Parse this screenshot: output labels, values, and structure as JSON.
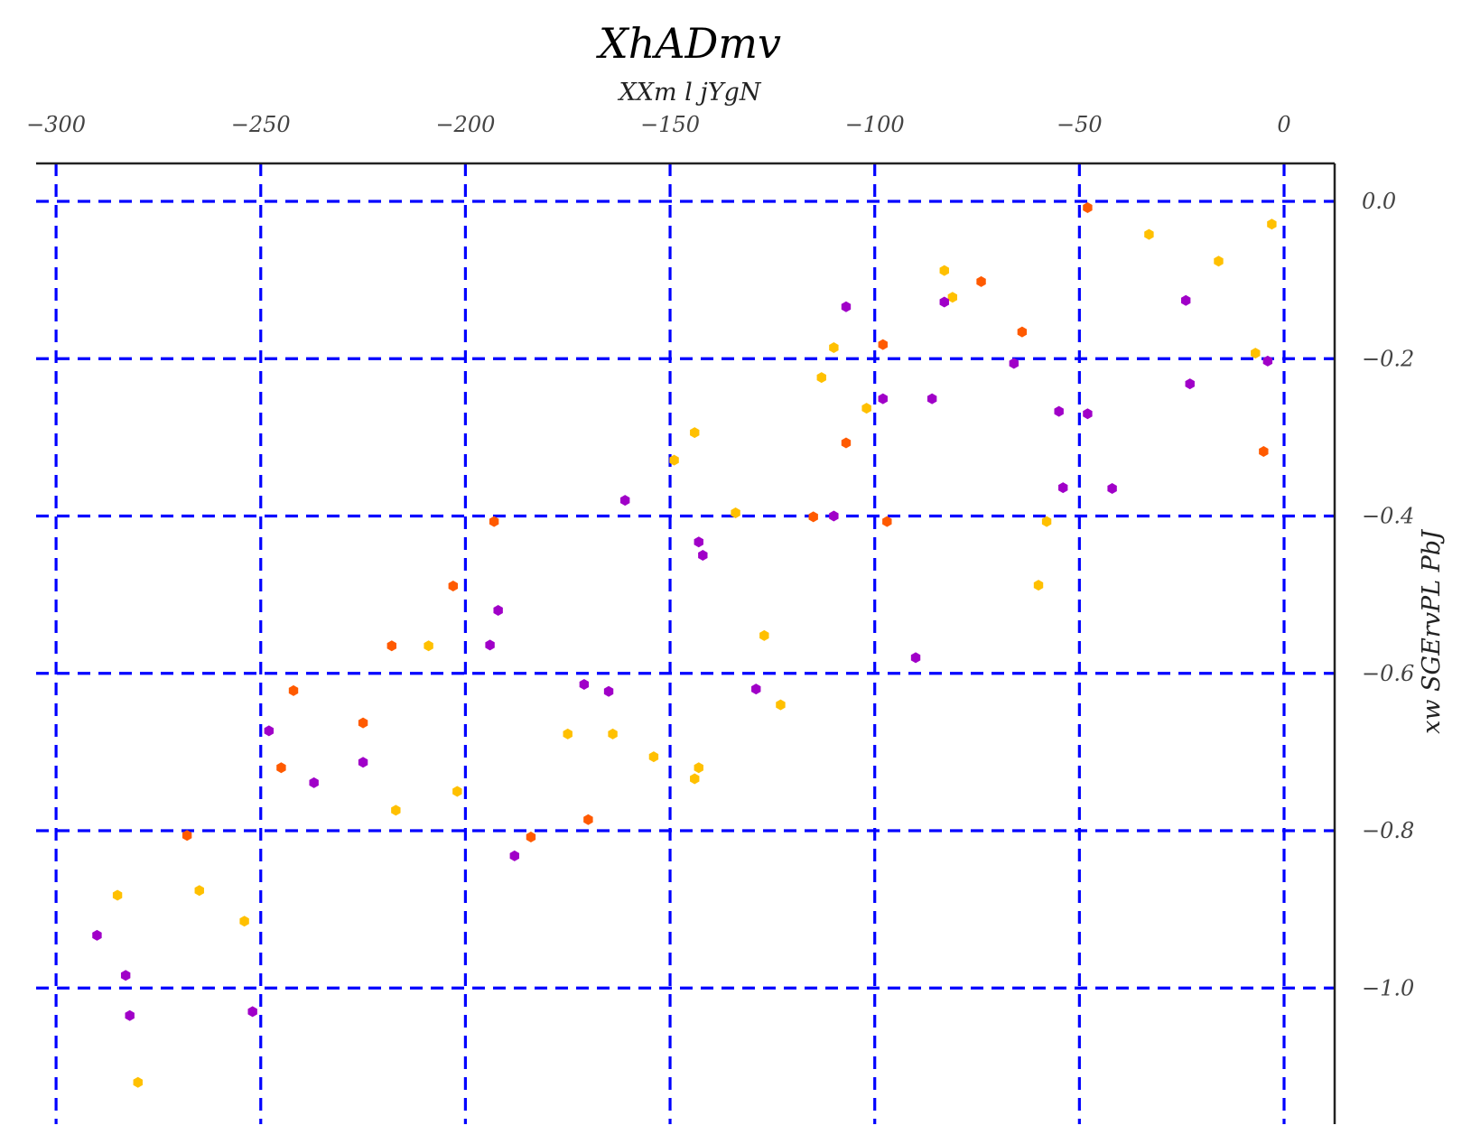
{
  "chart_data": {
    "type": "scatter",
    "title": "XhADmv",
    "xlabel": "XXm l jYgN",
    "ylabel": "xw SGErvPL PbJ",
    "x_axis_position": "top",
    "y_axis_position": "right",
    "xlim": [
      -305,
      12
    ],
    "ylim": [
      -1.17,
      0.05
    ],
    "x_ticks": [
      -300,
      -250,
      -200,
      -150,
      -100,
      -50,
      0
    ],
    "x_tick_labels": [
      "−300",
      "−250",
      "−200",
      "−150",
      "−100",
      "−50",
      "0"
    ],
    "y_ticks": [
      0.0,
      -0.2,
      -0.4,
      -0.6,
      -0.8,
      -1.0
    ],
    "y_tick_labels": [
      "0.0",
      "−0.2",
      "−0.4",
      "−0.6",
      "−0.8",
      "−1.0"
    ],
    "grid": true,
    "grid_color": "#0000ff",
    "marker": "hexagon",
    "series": [
      {
        "color": "#ff5a00",
        "points": [
          [
            -48,
            -0.008
          ],
          [
            -74,
            -0.102
          ],
          [
            -64,
            -0.166
          ],
          [
            -98,
            -0.182
          ],
          [
            -107,
            -0.307
          ],
          [
            -5,
            -0.318
          ],
          [
            -115,
            -0.401
          ],
          [
            -97,
            -0.407
          ],
          [
            -193,
            -0.407
          ],
          [
            -203,
            -0.489
          ],
          [
            -218,
            -0.565
          ],
          [
            -242,
            -0.622
          ],
          [
            -225,
            -0.663
          ],
          [
            -245,
            -0.72
          ],
          [
            -170,
            -0.786
          ],
          [
            -184,
            -0.808
          ],
          [
            -268,
            -0.806
          ]
        ]
      },
      {
        "color": "#ffc000",
        "points": [
          [
            -3,
            -0.029
          ],
          [
            -33,
            -0.042
          ],
          [
            -16,
            -0.076
          ],
          [
            -83,
            -0.088
          ],
          [
            -81,
            -0.122
          ],
          [
            -110,
            -0.186
          ],
          [
            -7,
            -0.193
          ],
          [
            -113,
            -0.224
          ],
          [
            -102,
            -0.263
          ],
          [
            -144,
            -0.294
          ],
          [
            -149,
            -0.329
          ],
          [
            -134,
            -0.396
          ],
          [
            -58,
            -0.407
          ],
          [
            -60,
            -0.488
          ],
          [
            -209,
            -0.565
          ],
          [
            -127,
            -0.552
          ],
          [
            -123,
            -0.64
          ],
          [
            -175,
            -0.677
          ],
          [
            -164,
            -0.677
          ],
          [
            -154,
            -0.706
          ],
          [
            -143,
            -0.72
          ],
          [
            -144,
            -0.734
          ],
          [
            -202,
            -0.75
          ],
          [
            -217,
            -0.774
          ],
          [
            -265,
            -0.876
          ],
          [
            -285,
            -0.882
          ],
          [
            -254,
            -0.915
          ],
          [
            -280,
            -1.12
          ]
        ]
      },
      {
        "color": "#a000c8",
        "points": [
          [
            -107,
            -0.134
          ],
          [
            -83,
            -0.128
          ],
          [
            -24,
            -0.126
          ],
          [
            -66,
            -0.206
          ],
          [
            -4,
            -0.203
          ],
          [
            -23,
            -0.232
          ],
          [
            -98,
            -0.251
          ],
          [
            -86,
            -0.251
          ],
          [
            -55,
            -0.267
          ],
          [
            -48,
            -0.27
          ],
          [
            -54,
            -0.364
          ],
          [
            -42,
            -0.365
          ],
          [
            -161,
            -0.38
          ],
          [
            -110,
            -0.4
          ],
          [
            -143,
            -0.433
          ],
          [
            -142,
            -0.45
          ],
          [
            -192,
            -0.52
          ],
          [
            -194,
            -0.564
          ],
          [
            -90,
            -0.58
          ],
          [
            -171,
            -0.614
          ],
          [
            -165,
            -0.623
          ],
          [
            -129,
            -0.62
          ],
          [
            -248,
            -0.673
          ],
          [
            -225,
            -0.713
          ],
          [
            -237,
            -0.739
          ],
          [
            -188,
            -0.832
          ],
          [
            -290,
            -0.933
          ],
          [
            -283,
            -0.984
          ],
          [
            -282,
            -1.035
          ],
          [
            -252,
            -1.03
          ]
        ]
      }
    ]
  }
}
